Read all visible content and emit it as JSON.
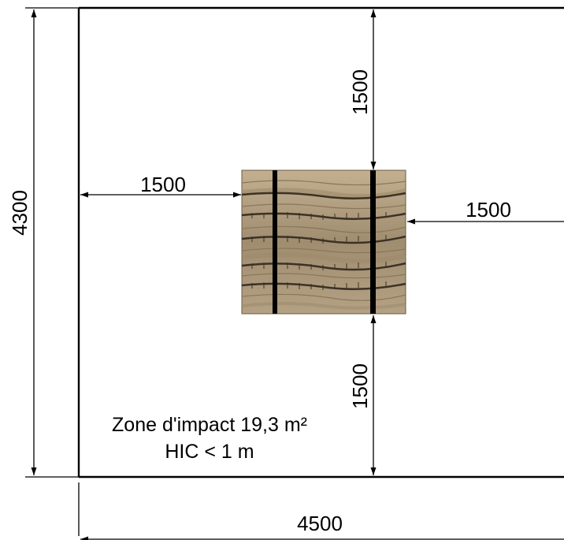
{
  "dimensions": {
    "total_height": "4300",
    "total_width": "4500",
    "clearance_left": "1500",
    "clearance_right": "1500",
    "clearance_top": "1500",
    "clearance_bottom": "1500"
  },
  "note": {
    "impact_zone": "Zone d'impact 19,3 m²",
    "hic": "HIC < 1 m"
  },
  "colors": {
    "line": "#000000",
    "wood_light": "#bba88a",
    "wood_dark": "#7c6a52",
    "strap": "#000000"
  }
}
